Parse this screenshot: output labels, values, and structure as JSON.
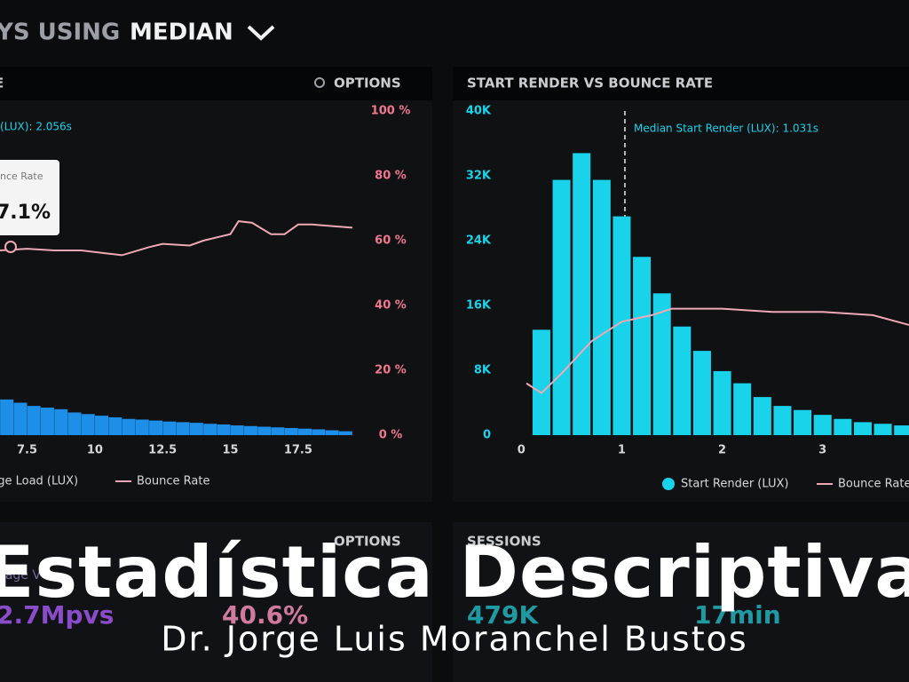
{
  "header": {
    "prefix": "YS USING",
    "title": "MEDIAN"
  },
  "chart_data": [
    {
      "type": "bar",
      "title": "E",
      "options": "OPTIONS",
      "annotation": "(LUX): 2.056s",
      "tooltip": {
        "label": "nce Rate",
        "value": "7.1%"
      },
      "xlim": [
        6.5,
        19.6
      ],
      "xticks": [
        7.5,
        10,
        12.5,
        15,
        17.5
      ],
      "ylim": [
        0,
        100
      ],
      "y2lim": [
        0,
        100
      ],
      "y2ticks": [
        {
          "value": 0,
          "label": "0 %"
        },
        {
          "value": 20,
          "label": "20 %"
        },
        {
          "value": 40,
          "label": "40 %"
        },
        {
          "value": 60,
          "label": "60 %"
        },
        {
          "value": 80,
          "label": "80 %"
        },
        {
          "value": 100,
          "label": "100 %"
        }
      ],
      "series": [
        {
          "name": "Page Load (LUX)",
          "color": "#1e8fe8",
          "x": [
            6.75,
            7.25,
            7.75,
            8.25,
            8.75,
            9.25,
            9.75,
            10.25,
            10.75,
            11.25,
            11.75,
            12.25,
            12.75,
            13.25,
            13.75,
            14.25,
            14.75,
            15.25,
            15.75,
            16.25,
            16.75,
            17.25,
            17.75,
            18.25,
            18.75,
            19.25
          ],
          "values": [
            11,
            10,
            9,
            8.5,
            8,
            7,
            6.5,
            6,
            5.5,
            5,
            4.8,
            4.5,
            4.2,
            4,
            3.8,
            3.5,
            3.3,
            3,
            2.8,
            2.6,
            2.4,
            2.2,
            2,
            1.8,
            1.5,
            1.2
          ]
        },
        {
          "name": "Bounce Rate",
          "color": "#f0a8b6",
          "axis": "y2",
          "x": [
            6.5,
            7.5,
            8.5,
            9.5,
            10.5,
            11,
            12,
            12.5,
            13.5,
            14,
            15,
            15.3,
            15.8,
            16.5,
            17,
            17.5,
            18,
            19.5
          ],
          "values": [
            57,
            57.5,
            57,
            57,
            56,
            55.5,
            58,
            59,
            58.5,
            60,
            62,
            66,
            65.5,
            62,
            62,
            65,
            65,
            64
          ]
        }
      ]
    },
    {
      "type": "bar",
      "title": "START RENDER VS BOUNCE RATE",
      "annotation": "Median Start Render (LUX): 1.031s",
      "median": 1.031,
      "xlim": [
        -0.1,
        3.86
      ],
      "xticks": [
        0,
        1,
        2,
        3
      ],
      "ylim": [
        0,
        40000
      ],
      "yticks": [
        0,
        {
          "value": 8000,
          "label": "8K"
        },
        {
          "value": 16000,
          "label": "16K"
        },
        {
          "value": 24000,
          "label": "24K"
        },
        {
          "value": 32000,
          "label": "32K"
        },
        {
          "value": 40000,
          "label": "40K"
        }
      ],
      "y2lim": [
        0,
        100
      ],
      "series": [
        {
          "name": "Start Render (LUX)",
          "color": "#19d3ea",
          "x": [
            0.2,
            0.4,
            0.6,
            0.8,
            1.0,
            1.2,
            1.4,
            1.6,
            1.8,
            2.0,
            2.2,
            2.4,
            2.6,
            2.8,
            3.0,
            3.2,
            3.4,
            3.6,
            3.8
          ],
          "values": [
            13000,
            31500,
            34800,
            31500,
            27000,
            22000,
            17500,
            13400,
            10400,
            7900,
            6400,
            4700,
            3600,
            3100,
            2500,
            2000,
            1600,
            1400,
            1200
          ]
        },
        {
          "name": "Bounce Rate",
          "color": "#f0a8b6",
          "axis": "y2",
          "x": [
            0.05,
            0.2,
            0.4,
            0.7,
            1.0,
            1.3,
            1.5,
            2.0,
            2.5,
            3.0,
            3.5,
            3.86
          ],
          "values": [
            16,
            13,
            19,
            29,
            35,
            37,
            39,
            39,
            38,
            38,
            37,
            34
          ]
        }
      ]
    }
  ],
  "bottom": {
    "options": "OPTIONS",
    "sessions": "SESSIONS",
    "metrics": [
      {
        "label": "Page V",
        "value": "2.7Mpvs"
      },
      {
        "value": "40.6%"
      },
      {
        "value": "479K"
      },
      {
        "value": "17min"
      }
    ]
  },
  "overlay": {
    "title": "Estadística Descriptiva",
    "subtitle": "Dr. Jorge Luis Moranchel Bustos"
  }
}
